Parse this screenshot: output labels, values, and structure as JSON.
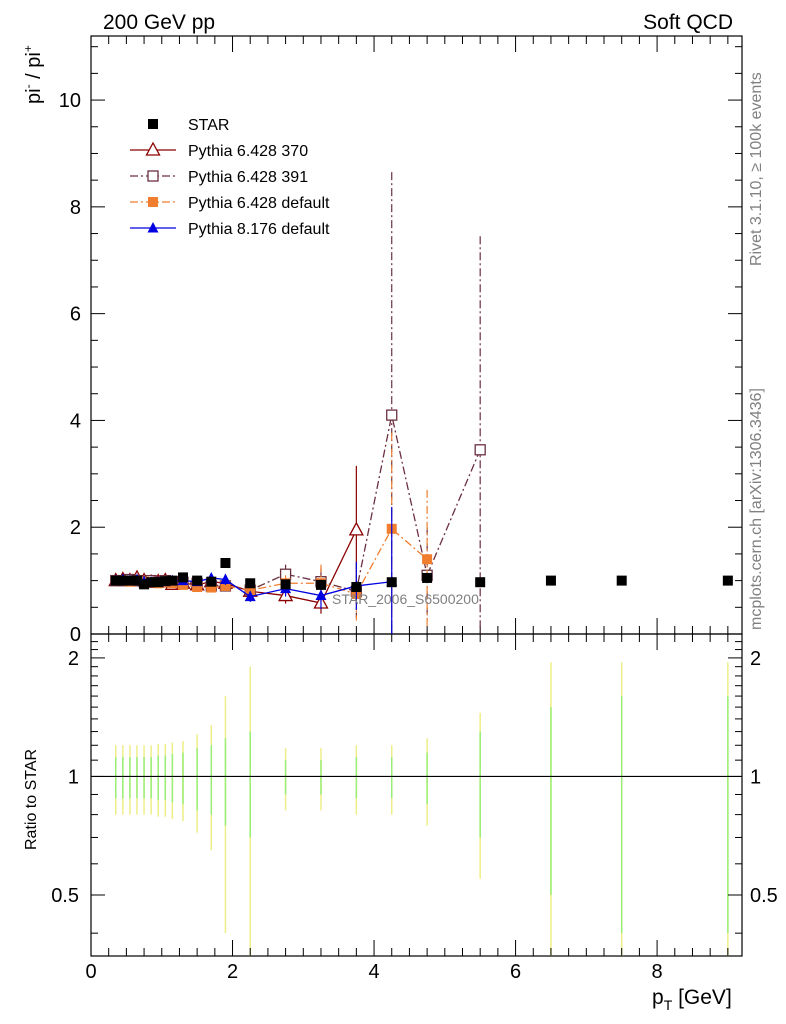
{
  "header": {
    "left": "200 GeV pp",
    "right": "Soft QCD"
  },
  "side_labels": {
    "rivet": "Rivet 3.1.10, ≥ 100k events",
    "mcplots": "mcplots.cern.ch [arXiv:1306.3436]"
  },
  "watermark": "STAR_2006_S6500200",
  "chart_data": [
    {
      "type": "scatter",
      "ylabel": "pi⁻ / pi⁺",
      "xlabel": "p_T [GeV]",
      "xlim": [
        0,
        9.2
      ],
      "ylim": [
        0,
        11.2
      ],
      "yticks": [
        0,
        2,
        4,
        6,
        8,
        10
      ],
      "legend_position": "top-left",
      "series": [
        {
          "name": "STAR",
          "marker": "square-filled",
          "color": "#000000",
          "line": "none",
          "x": [
            0.35,
            0.45,
            0.55,
            0.65,
            0.75,
            0.85,
            0.95,
            1.05,
            1.15,
            1.3,
            1.5,
            1.7,
            1.9,
            2.25,
            2.75,
            3.25,
            3.75,
            4.25,
            4.75,
            5.5,
            6.5,
            7.5,
            9.0
          ],
          "y": [
            1.0,
            1.0,
            1.0,
            1.0,
            0.93,
            0.97,
            0.97,
            0.99,
            1.0,
            1.06,
            1.0,
            0.98,
            1.33,
            0.95,
            0.93,
            0.92,
            0.88,
            0.97,
            1.05,
            0.97,
            1.0,
            1.0,
            1.0
          ]
        },
        {
          "name": "Pythia 6.428 370",
          "marker": "triangle-open",
          "color": "#8b0000",
          "line": "solid",
          "x": [
            0.35,
            0.45,
            0.55,
            0.65,
            0.75,
            0.85,
            0.95,
            1.05,
            1.15,
            1.3,
            1.5,
            1.7,
            1.9,
            2.25,
            2.75,
            3.25,
            3.75
          ],
          "y": [
            1.0,
            1.02,
            1.0,
            1.05,
            1.0,
            0.97,
            0.98,
            1.0,
            0.93,
            0.95,
            0.92,
            0.98,
            0.95,
            0.8,
            0.72,
            0.58,
            1.95
          ],
          "err": [
            0.05,
            0.05,
            0.05,
            0.05,
            0.05,
            0.05,
            0.05,
            0.05,
            0.06,
            0.06,
            0.07,
            0.08,
            0.09,
            0.1,
            0.15,
            0.2,
            1.2
          ]
        },
        {
          "name": "Pythia 6.428 391",
          "marker": "square-open",
          "color": "#6b3040",
          "line": "dashdot",
          "x": [
            0.35,
            0.45,
            0.55,
            0.65,
            0.75,
            0.85,
            0.95,
            1.05,
            1.15,
            1.3,
            1.5,
            1.7,
            1.9,
            2.25,
            2.75,
            3.25,
            3.75,
            4.25,
            4.75,
            5.5
          ],
          "y": [
            1.0,
            1.0,
            1.02,
            1.0,
            0.98,
            1.0,
            0.97,
            1.0,
            0.98,
            0.97,
            0.95,
            0.9,
            0.9,
            0.82,
            1.12,
            0.98,
            0.8,
            4.1,
            1.1,
            3.45
          ],
          "err": [
            0.05,
            0.05,
            0.05,
            0.05,
            0.05,
            0.05,
            0.05,
            0.05,
            0.06,
            0.06,
            0.07,
            0.08,
            0.09,
            0.1,
            0.18,
            0.25,
            0.5,
            4.55,
            0.9,
            4.0
          ]
        },
        {
          "name": "Pythia 6.428 default",
          "marker": "square-filled",
          "color": "#f07e2e",
          "line": "dashdot",
          "x": [
            0.35,
            0.45,
            0.55,
            0.65,
            0.75,
            0.85,
            0.95,
            1.05,
            1.15,
            1.3,
            1.5,
            1.7,
            1.9,
            2.25,
            2.75,
            3.25,
            3.75,
            4.25,
            4.75
          ],
          "y": [
            1.0,
            1.0,
            0.98,
            1.0,
            0.98,
            0.97,
            0.95,
            0.97,
            0.95,
            0.92,
            0.88,
            0.87,
            0.9,
            0.82,
            0.95,
            0.95,
            0.75,
            1.97,
            1.4
          ],
          "err": [
            0.05,
            0.05,
            0.05,
            0.05,
            0.05,
            0.05,
            0.05,
            0.05,
            0.06,
            0.06,
            0.07,
            0.08,
            0.09,
            0.1,
            0.15,
            0.35,
            0.5,
            1.8,
            1.3
          ]
        },
        {
          "name": "Pythia 8.176 default",
          "marker": "triangle-filled",
          "color": "#0000e0",
          "line": "solid",
          "x": [
            0.35,
            0.45,
            0.55,
            0.65,
            0.75,
            0.85,
            0.95,
            1.05,
            1.15,
            1.3,
            1.5,
            1.7,
            1.9,
            2.25,
            2.75,
            3.25,
            3.75,
            4.25
          ],
          "y": [
            1.0,
            1.02,
            1.0,
            1.02,
            0.98,
            0.97,
            0.97,
            0.98,
            1.0,
            1.0,
            0.98,
            1.05,
            1.02,
            0.7,
            0.85,
            0.72,
            0.9,
            0.98
          ],
          "err": [
            0.05,
            0.05,
            0.05,
            0.05,
            0.05,
            0.05,
            0.05,
            0.05,
            0.06,
            0.06,
            0.07,
            0.08,
            0.1,
            0.1,
            0.15,
            0.25,
            0.45,
            1.4
          ]
        }
      ]
    },
    {
      "type": "scatter",
      "ylabel": "Ratio to STAR",
      "xlabel": "p_T [GeV]",
      "xlim": [
        0,
        9.2
      ],
      "ylim": [
        0.35,
        2.3
      ],
      "log_y": true,
      "yticks": [
        0.5,
        1,
        2
      ],
      "xticks": [
        0,
        2,
        4,
        6,
        8
      ],
      "reference_line": 1,
      "bands": {
        "x": [
          0.35,
          0.45,
          0.55,
          0.65,
          0.75,
          0.85,
          0.95,
          1.05,
          1.15,
          1.3,
          1.5,
          1.7,
          1.9,
          2.25,
          2.75,
          3.25,
          3.75,
          4.25,
          4.75,
          5.5,
          6.5,
          7.5,
          9.0
        ],
        "stat": [
          0.12,
          0.12,
          0.12,
          0.12,
          0.12,
          0.12,
          0.13,
          0.13,
          0.14,
          0.15,
          0.18,
          0.2,
          0.25,
          0.3,
          0.1,
          0.1,
          0.12,
          0.12,
          0.15,
          0.3,
          0.5,
          0.6,
          0.6
        ],
        "total": [
          0.2,
          0.2,
          0.2,
          0.2,
          0.2,
          0.2,
          0.21,
          0.21,
          0.22,
          0.23,
          0.28,
          0.35,
          0.6,
          0.9,
          0.18,
          0.18,
          0.2,
          0.2,
          0.25,
          0.45,
          0.95,
          0.95,
          0.95
        ],
        "stat_color": "#99ee77",
        "total_color": "#eeee88"
      }
    }
  ]
}
